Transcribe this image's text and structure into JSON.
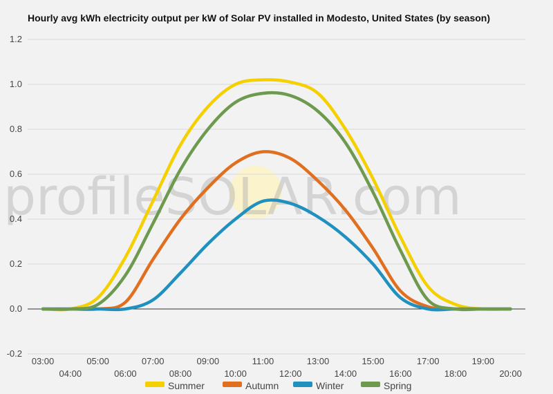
{
  "chart_data": {
    "type": "line",
    "title": "Hourly avg kWh electricity output per kW of Solar PV installed in Modesto, United States (by season)",
    "xlabel": "",
    "ylabel": "",
    "x": [
      "03:00",
      "04:00",
      "05:00",
      "06:00",
      "07:00",
      "08:00",
      "09:00",
      "10:00",
      "11:00",
      "12:00",
      "13:00",
      "14:00",
      "15:00",
      "16:00",
      "17:00",
      "18:00",
      "19:00",
      "20:00"
    ],
    "ylim": [
      -0.2,
      1.2
    ],
    "yticks": [
      -0.2,
      0.0,
      0.2,
      0.4,
      0.6,
      0.8,
      1.0,
      1.2
    ],
    "yticklabels": [
      "-0.2",
      "0.0",
      "0.2",
      "0.4",
      "0.6",
      "0.8",
      "1.0",
      "1.2"
    ],
    "grid": true,
    "legend_position": "bottom",
    "watermark": "profileSOLAR.com",
    "series": [
      {
        "name": "Summer",
        "color": "#f5d000",
        "values": [
          0.0,
          0.0,
          0.05,
          0.23,
          0.48,
          0.73,
          0.9,
          1.0,
          1.02,
          1.01,
          0.96,
          0.8,
          0.58,
          0.32,
          0.1,
          0.02,
          0.0,
          0.0
        ]
      },
      {
        "name": "Autumn",
        "color": "#e07020",
        "values": [
          0.0,
          0.0,
          0.0,
          0.03,
          0.22,
          0.4,
          0.54,
          0.65,
          0.7,
          0.67,
          0.57,
          0.44,
          0.27,
          0.08,
          0.01,
          0.0,
          0.0,
          0.0
        ]
      },
      {
        "name": "Winter",
        "color": "#2090bf",
        "values": [
          0.0,
          0.0,
          0.0,
          0.0,
          0.04,
          0.16,
          0.29,
          0.4,
          0.48,
          0.47,
          0.41,
          0.32,
          0.2,
          0.05,
          0.0,
          0.0,
          0.0,
          0.0
        ]
      },
      {
        "name": "Spring",
        "color": "#6e9a4f",
        "values": [
          0.0,
          0.0,
          0.02,
          0.15,
          0.38,
          0.62,
          0.8,
          0.92,
          0.96,
          0.95,
          0.88,
          0.74,
          0.52,
          0.26,
          0.04,
          0.0,
          0.0,
          0.0
        ]
      }
    ]
  }
}
